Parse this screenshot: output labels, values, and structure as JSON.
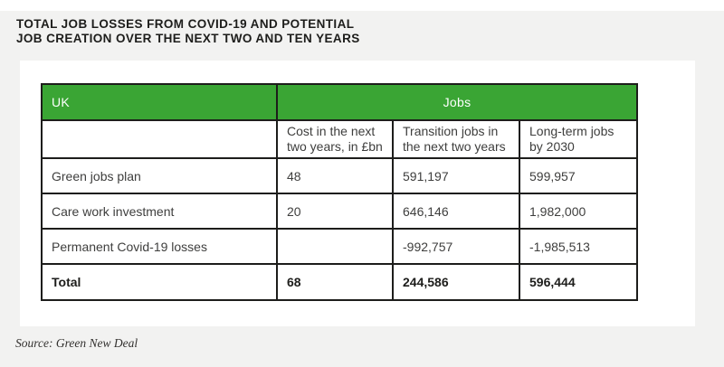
{
  "figure": {
    "title_line1": "TOTAL JOB LOSSES FROM COVID-19 AND POTENTIAL",
    "title_line2": "JOB CREATION OVER THE NEXT TWO AND TEN YEARS",
    "source": "Source: Green New Deal"
  },
  "table": {
    "region_header": "UK",
    "group_header": "Jobs",
    "columns": [
      "Cost in the next two years, in £bn",
      "Transition jobs in the next two years",
      "Long-term jobs by 2030"
    ],
    "rows": [
      {
        "label": "Green jobs plan",
        "cost": "48",
        "transition": "591,197",
        "longterm": "599,957"
      },
      {
        "label": "Care work investment",
        "cost": "20",
        "transition": "646,146",
        "longterm": "1,982,000"
      },
      {
        "label": "Permanent Covid-19 losses",
        "cost": "",
        "transition": "-992,757",
        "longterm": "-1,985,513"
      }
    ],
    "total": {
      "label": "Total",
      "cost": "68",
      "transition": "244,586",
      "longterm": "596,444"
    }
  },
  "colors": {
    "header_green": "#3aa534",
    "border": "#1d1d1b",
    "body_text": "#3e3e3d",
    "title_text": "#1d1d1b",
    "background_gray": "#f2f2f1",
    "panel_white": "#ffffff"
  },
  "chart_data": {
    "type": "table",
    "title": "TOTAL JOB LOSSES FROM COVID-19 AND POTENTIAL JOB CREATION OVER THE NEXT TWO AND TEN YEARS",
    "corner_label": "UK",
    "column_group_label": "Jobs",
    "columns": [
      "Cost in the next two years, in £bn",
      "Transition jobs in the next two years",
      "Long-term jobs by 2030"
    ],
    "rows": [
      {
        "label": "Green jobs plan",
        "cost_next_two_years_bn": 48,
        "transition_jobs_next_two_years": 591197,
        "long_term_jobs_by_2030": 599957
      },
      {
        "label": "Care work investment",
        "cost_next_two_years_bn": 20,
        "transition_jobs_next_two_years": 646146,
        "long_term_jobs_by_2030": 1982000
      },
      {
        "label": "Permanent Covid-19 losses",
        "cost_next_two_years_bn": null,
        "transition_jobs_next_two_years": -992757,
        "long_term_jobs_by_2030": -1985513
      },
      {
        "label": "Total",
        "cost_next_two_years_bn": 68,
        "transition_jobs_next_two_years": 244586,
        "long_term_jobs_by_2030": 596444
      }
    ],
    "source": "Source: Green New Deal"
  }
}
